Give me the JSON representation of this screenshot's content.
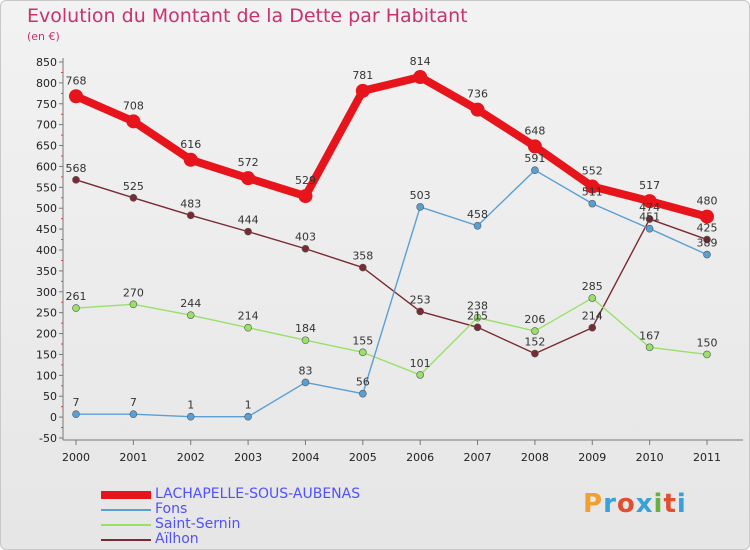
{
  "title": "Evolution du Montant de la Dette par Habitant",
  "subtitle": "(en €)",
  "logo": {
    "text": "Proxiti",
    "colors": [
      "#f0a030",
      "#3aa0d8",
      "#e05030",
      "#3aa0d8",
      "#6ab040",
      "#e05030",
      "#3aa0d8"
    ]
  },
  "chart_data": {
    "type": "line",
    "x": [
      "2000",
      "2001",
      "2002",
      "2003",
      "2004",
      "2005",
      "2006",
      "2007",
      "2008",
      "2009",
      "2010",
      "2011"
    ],
    "ylim": [
      -50,
      850
    ],
    "yticks": [
      -50,
      0,
      50,
      100,
      150,
      200,
      250,
      300,
      350,
      400,
      450,
      500,
      550,
      600,
      650,
      700,
      750,
      800,
      850
    ],
    "grid": false,
    "legend_position": "bottom-left",
    "series": [
      {
        "name": "LACHAPELLE-SOUS-AUBENAS",
        "color": "#e8141b",
        "values": [
          768,
          708,
          616,
          572,
          529,
          781,
          814,
          736,
          648,
          552,
          517,
          480
        ]
      },
      {
        "name": "Fons",
        "color": "#5a9fd4",
        "values": [
          7,
          7,
          1,
          1,
          83,
          56,
          503,
          458,
          591,
          511,
          451,
          389
        ]
      },
      {
        "name": "Saint-Sernin",
        "color": "#99e06a",
        "values": [
          261,
          270,
          244,
          214,
          184,
          155,
          101,
          238,
          206,
          285,
          167,
          150
        ]
      },
      {
        "name": "Aïlhon",
        "color": "#7a2a32",
        "values": [
          568,
          525,
          483,
          444,
          403,
          358,
          253,
          215,
          152,
          214,
          474,
          425
        ]
      }
    ]
  }
}
